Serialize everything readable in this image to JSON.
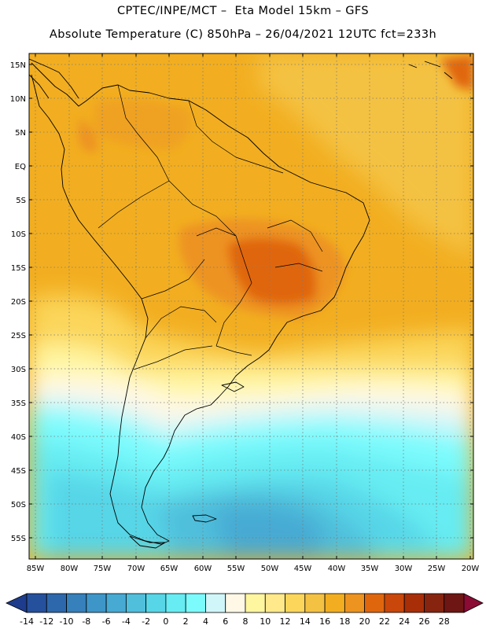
{
  "header": {
    "line1": "CPTEC/INPE/MCT –  Eta Model 15km – GFS",
    "line2": "Absolute Temperature (C) 850hPa – 26/04/2021 12UTC fct=233h"
  },
  "map": {
    "lon_range": [
      -86,
      -19
    ],
    "lat_range": [
      -58,
      17
    ],
    "lat_labels": [
      "15N",
      "10N",
      "5N",
      "EQ",
      "5S",
      "10S",
      "15S",
      "20S",
      "25S",
      "30S",
      "35S",
      "40S",
      "45S",
      "50S",
      "55S"
    ],
    "lon_labels": [
      "85W",
      "80W",
      "75W",
      "70W",
      "65W",
      "60W",
      "55W",
      "50W",
      "45W",
      "40W",
      "35W",
      "30W",
      "25W",
      "20W"
    ]
  },
  "colorbar": {
    "labels": [
      "-14",
      "-12",
      "-10",
      "-8",
      "-6",
      "-4",
      "-2",
      "0",
      "2",
      "4",
      "6",
      "8",
      "10",
      "12",
      "14",
      "16",
      "18",
      "20",
      "22",
      "24",
      "26",
      "28"
    ],
    "colors": [
      "#1e3c8c",
      "#25509c",
      "#2e68ac",
      "#3680bb",
      "#3e96c8",
      "#47aad3",
      "#4fbfdc",
      "#57d6e7",
      "#66ecf2",
      "#7cfbfd",
      "#d0f6fa",
      "#fff8e6",
      "#fff6a0",
      "#ffe98a",
      "#fbd65a",
      "#f4c242",
      "#f2ae20",
      "#ed9320",
      "#e0660e",
      "#c9470a",
      "#a82e08",
      "#862410",
      "#6e1614",
      "#8b0b35"
    ]
  }
}
